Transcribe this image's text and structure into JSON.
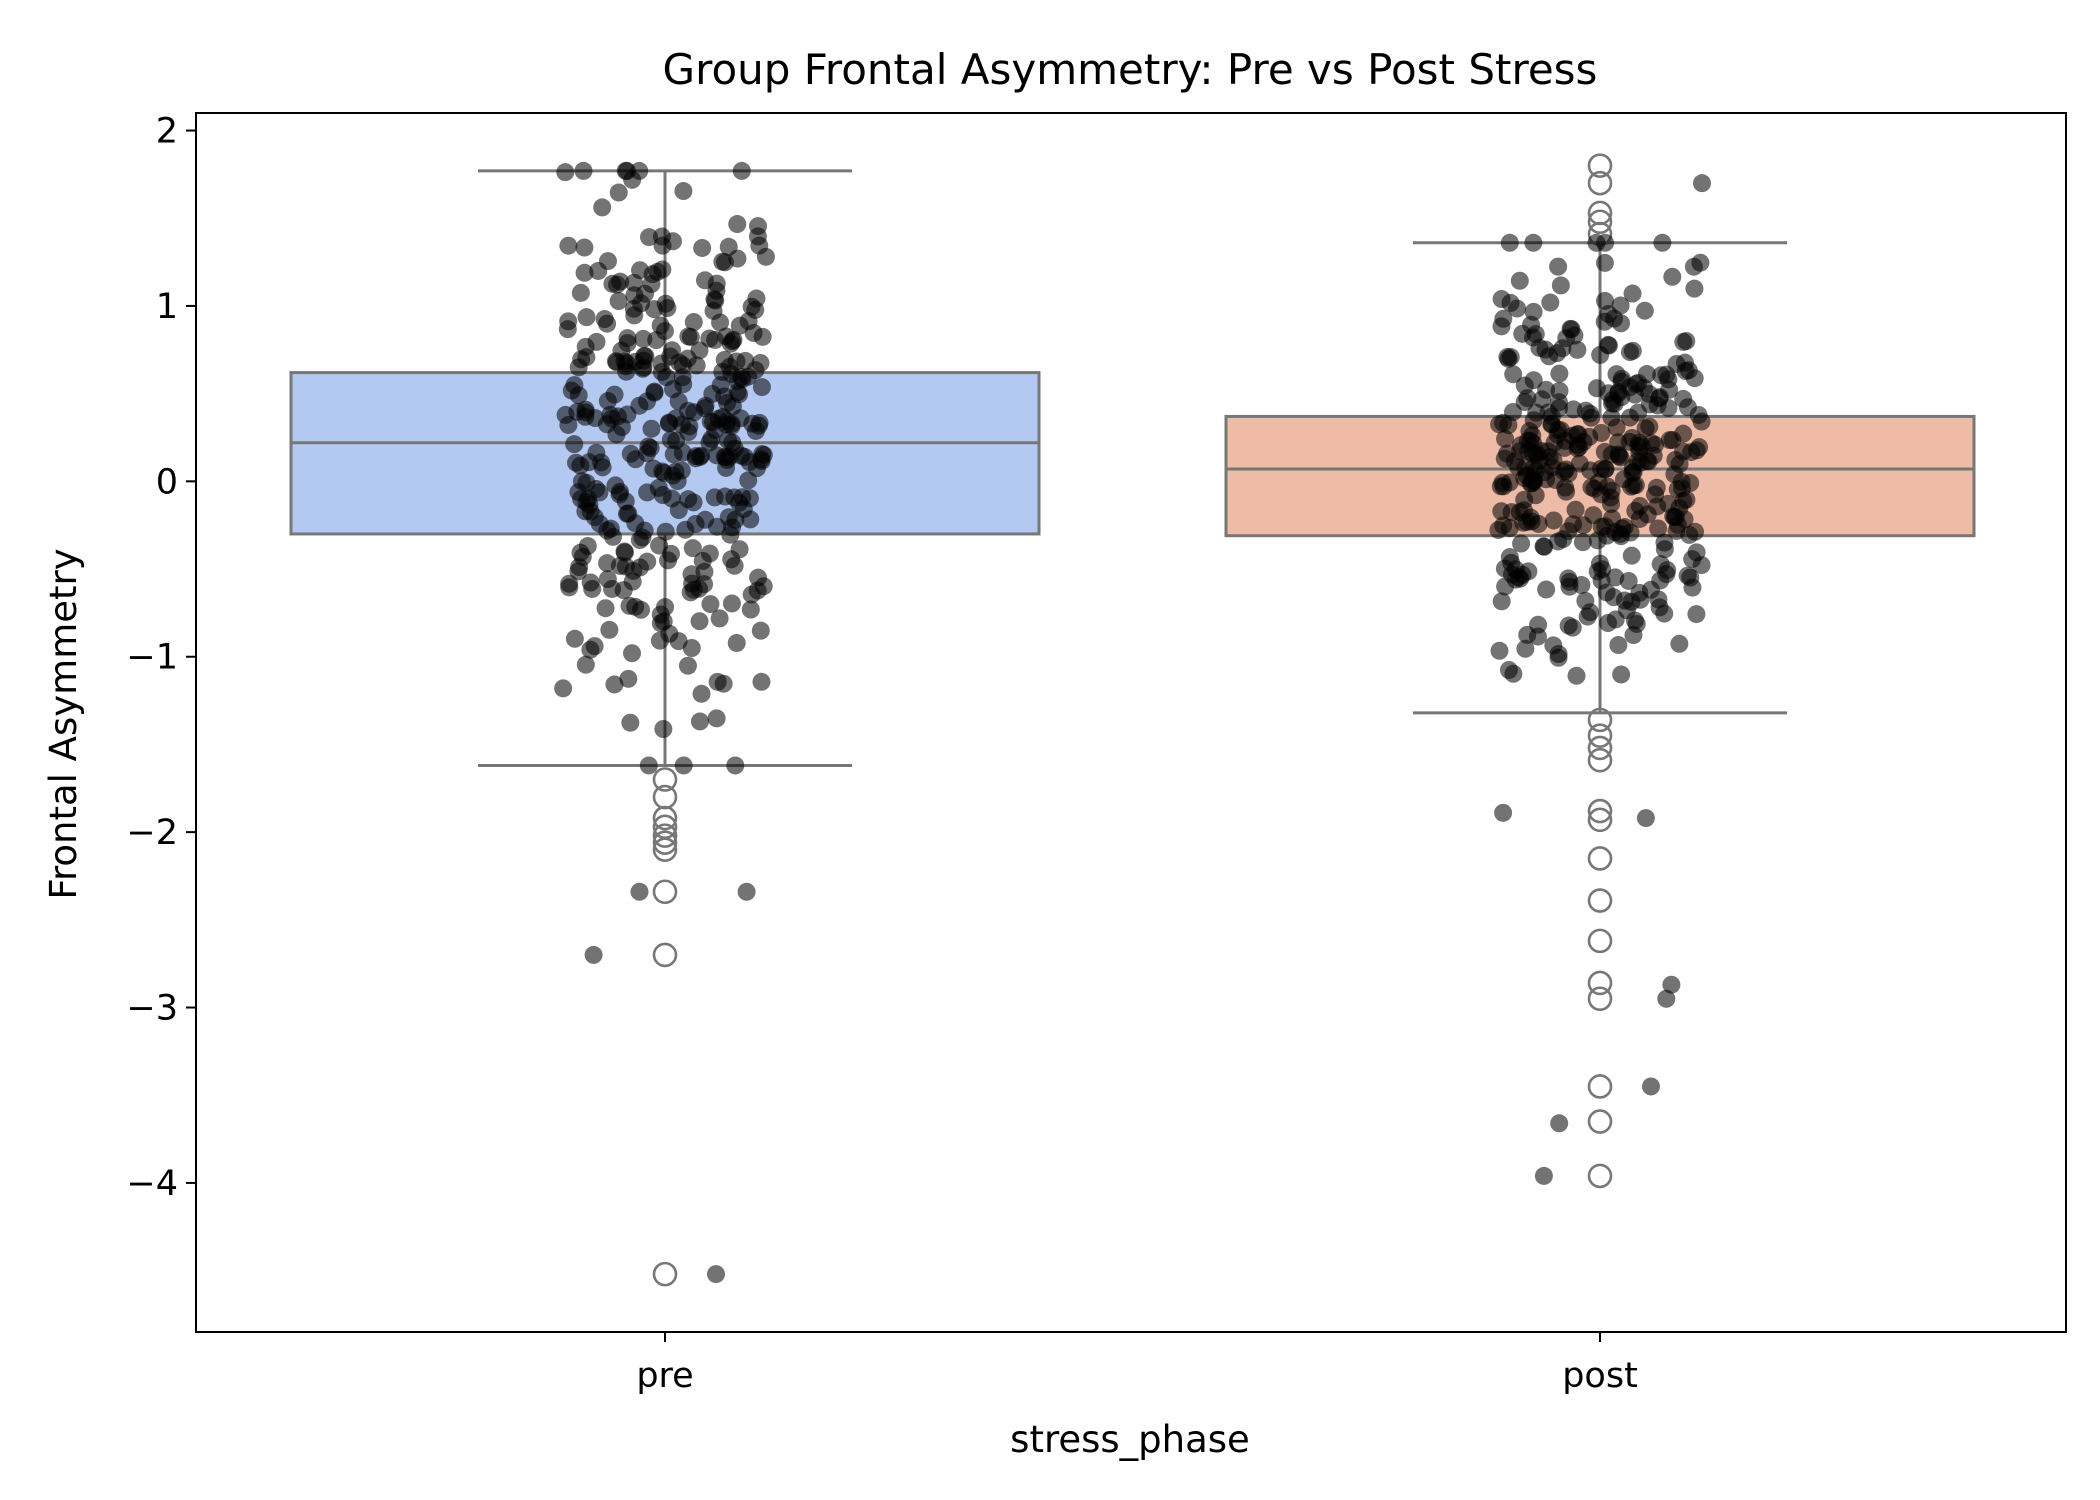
{
  "chart_data": {
    "type": "box",
    "title": "Group Frontal Asymmetry: Pre vs Post Stress",
    "xlabel": "stress_phase",
    "ylabel": "Frontal Asymmetry",
    "categories": [
      "pre",
      "post"
    ],
    "ylim": [
      -4.85,
      2.1
    ],
    "yticks": [
      2,
      1,
      0,
      -1,
      -2,
      -3,
      -4
    ],
    "ytick_labels": [
      "2",
      "1",
      "0",
      "−1",
      "−2",
      "−3",
      "−4"
    ],
    "grid": false,
    "colors": {
      "pre_box": "#b4c9f2",
      "post_box": "#edbba6",
      "box_edge": "#777777",
      "points": "#000000",
      "outlier_edge": "#777777"
    },
    "boxes": [
      {
        "category": "pre",
        "q1": -0.3,
        "median": 0.22,
        "q3": 0.62,
        "whisker_low": -1.62,
        "whisker_high": 1.77,
        "outliers": [
          -1.7,
          -1.8,
          -1.92,
          -1.97,
          -2.02,
          -2.06,
          -2.1,
          -2.34,
          -2.7,
          -4.52
        ]
      },
      {
        "category": "post",
        "q1": -0.31,
        "median": 0.07,
        "q3": 0.37,
        "whisker_low": -1.32,
        "whisker_high": 1.36,
        "outliers": [
          1.8,
          1.7,
          1.53,
          1.48,
          1.41,
          -1.36,
          -1.45,
          -1.52,
          -1.59,
          -1.88,
          -1.93,
          -2.15,
          -2.39,
          -2.62,
          -2.86,
          -2.95,
          -3.45,
          -3.65,
          -3.96
        ]
      }
    ],
    "strip_points_note": "",
    "extreme_points": [
      {
        "category": "pre",
        "offset": 0.1,
        "value": -4.52
      },
      {
        "category": "pre",
        "offset": -0.14,
        "value": -2.7
      },
      {
        "category": "pre",
        "offset": -0.05,
        "value": -2.34
      },
      {
        "category": "pre",
        "offset": 0.16,
        "value": -2.34
      },
      {
        "category": "post",
        "offset": -0.11,
        "value": -3.96
      },
      {
        "category": "post",
        "offset": -0.08,
        "value": -3.66
      },
      {
        "category": "post",
        "offset": 0.1,
        "value": -3.45
      },
      {
        "category": "post",
        "offset": 0.14,
        "value": -2.87
      },
      {
        "category": "post",
        "offset": 0.13,
        "value": -2.95
      },
      {
        "category": "post",
        "offset": -0.19,
        "value": -1.89
      },
      {
        "category": "post",
        "offset": 0.09,
        "value": -1.92
      },
      {
        "category": "post",
        "offset": 0.2,
        "value": 1.7
      }
    ]
  }
}
